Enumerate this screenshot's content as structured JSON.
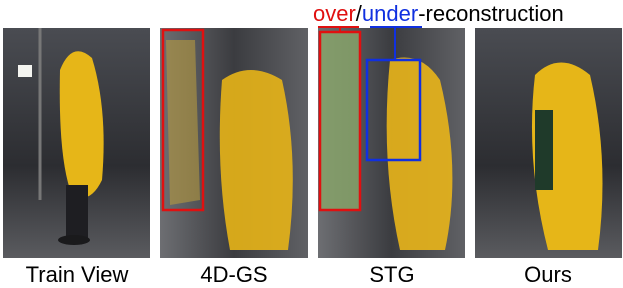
{
  "annotation": {
    "over": "over",
    "slash": "/",
    "under": "under",
    "rest": "-reconstruction"
  },
  "panels": [
    {
      "label": "Train View"
    },
    {
      "label": "4D-GS"
    },
    {
      "label": "STG"
    },
    {
      "label": "Ours"
    }
  ]
}
